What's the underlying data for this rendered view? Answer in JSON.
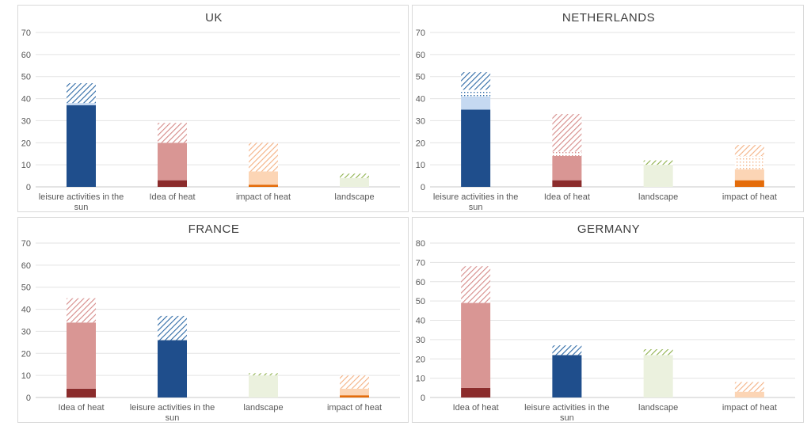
{
  "colors": {
    "blue_dark": "#1f4e8c",
    "blue_light": "#c5d9f1",
    "blue_hatch": "#2e6aa6",
    "red_dark": "#8b2c2c",
    "red_mid": "#d99694",
    "red_hatch": "#d58a88",
    "orange_dark": "#e46c0a",
    "orange_light": "#fcd5b5",
    "orange_hatch": "#f4b183",
    "green_light": "#ebf1de",
    "green_hatch": "#8db04a"
  },
  "chart_data": [
    {
      "type": "bar",
      "stacked": true,
      "title": "UK",
      "ylim": [
        0,
        70
      ],
      "yticks": [
        0,
        10,
        20,
        30,
        40,
        50,
        60,
        70
      ],
      "grid": true,
      "categories": [
        {
          "label": "leisure activities in the sun",
          "palette": "blue",
          "segments": [
            {
              "style": "dark",
              "value": 37
            },
            {
              "style": "light",
              "value": 1
            },
            {
              "style": "hatch",
              "value": 9
            }
          ]
        },
        {
          "label": "Idea of heat",
          "palette": "red",
          "segments": [
            {
              "style": "dark",
              "value": 3
            },
            {
              "style": "mid",
              "value": 17
            },
            {
              "style": "hatch",
              "value": 9
            }
          ]
        },
        {
          "label": "impact of heat",
          "palette": "orange",
          "segments": [
            {
              "style": "dark",
              "value": 1
            },
            {
              "style": "light",
              "value": 6
            },
            {
              "style": "hatch",
              "value": 13
            }
          ]
        },
        {
          "label": "landscape",
          "palette": "green",
          "segments": [
            {
              "style": "light",
              "value": 4
            },
            {
              "style": "hatch",
              "value": 2
            }
          ]
        }
      ]
    },
    {
      "type": "bar",
      "stacked": true,
      "title": "NETHERLANDS",
      "ylim": [
        0,
        70
      ],
      "yticks": [
        0,
        10,
        20,
        30,
        40,
        50,
        60,
        70
      ],
      "grid": true,
      "categories": [
        {
          "label": "leisure activities in the sun",
          "palette": "blue",
          "segments": [
            {
              "style": "dark",
              "value": 35
            },
            {
              "style": "light",
              "value": 6
            },
            {
              "style": "dots",
              "value": 3
            },
            {
              "style": "hatch",
              "value": 8
            }
          ]
        },
        {
          "label": "Idea of heat",
          "palette": "red",
          "segments": [
            {
              "style": "dark",
              "value": 3
            },
            {
              "style": "mid",
              "value": 11
            },
            {
              "style": "dots",
              "value": 2
            },
            {
              "style": "hatch",
              "value": 17
            }
          ]
        },
        {
          "label": "landscape",
          "palette": "green",
          "segments": [
            {
              "style": "light",
              "value": 10
            },
            {
              "style": "hatch",
              "value": 2
            }
          ]
        },
        {
          "label": "impact of heat",
          "palette": "orange",
          "segments": [
            {
              "style": "dark",
              "value": 3
            },
            {
              "style": "light",
              "value": 5
            },
            {
              "style": "dots",
              "value": 6
            },
            {
              "style": "hatch",
              "value": 5
            }
          ]
        }
      ]
    },
    {
      "type": "bar",
      "stacked": true,
      "title": "FRANCE",
      "ylim": [
        0,
        70
      ],
      "yticks": [
        0,
        10,
        20,
        30,
        40,
        50,
        60,
        70
      ],
      "grid": true,
      "categories": [
        {
          "label": "Idea of heat",
          "palette": "red",
          "segments": [
            {
              "style": "dark",
              "value": 4
            },
            {
              "style": "mid",
              "value": 30
            },
            {
              "style": "hatch",
              "value": 11
            }
          ]
        },
        {
          "label": "leisure activities in the sun",
          "palette": "blue",
          "segments": [
            {
              "style": "dark",
              "value": 26
            },
            {
              "style": "hatch",
              "value": 11
            }
          ]
        },
        {
          "label": "landscape",
          "palette": "green",
          "segments": [
            {
              "style": "light",
              "value": 10
            },
            {
              "style": "hatch",
              "value": 1
            }
          ]
        },
        {
          "label": "impact of heat",
          "palette": "orange",
          "segments": [
            {
              "style": "dark",
              "value": 1
            },
            {
              "style": "light",
              "value": 3
            },
            {
              "style": "hatch",
              "value": 6
            }
          ]
        }
      ]
    },
    {
      "type": "bar",
      "stacked": true,
      "title": "GERMANY",
      "ylim": [
        0,
        80
      ],
      "yticks": [
        0,
        10,
        20,
        30,
        40,
        50,
        60,
        70,
        80
      ],
      "grid": true,
      "categories": [
        {
          "label": "Idea of heat",
          "palette": "red",
          "segments": [
            {
              "style": "dark",
              "value": 5
            },
            {
              "style": "mid",
              "value": 44
            },
            {
              "style": "hatch",
              "value": 19
            }
          ]
        },
        {
          "label": "leisure activities in the sun",
          "palette": "blue",
          "segments": [
            {
              "style": "dark",
              "value": 22
            },
            {
              "style": "hatch",
              "value": 5
            }
          ]
        },
        {
          "label": "landscape",
          "palette": "green",
          "segments": [
            {
              "style": "light",
              "value": 22
            },
            {
              "style": "hatch",
              "value": 3
            }
          ]
        },
        {
          "label": "impact of heat",
          "palette": "orange",
          "segments": [
            {
              "style": "light",
              "value": 3
            },
            {
              "style": "hatch",
              "value": 5
            }
          ]
        }
      ]
    }
  ]
}
